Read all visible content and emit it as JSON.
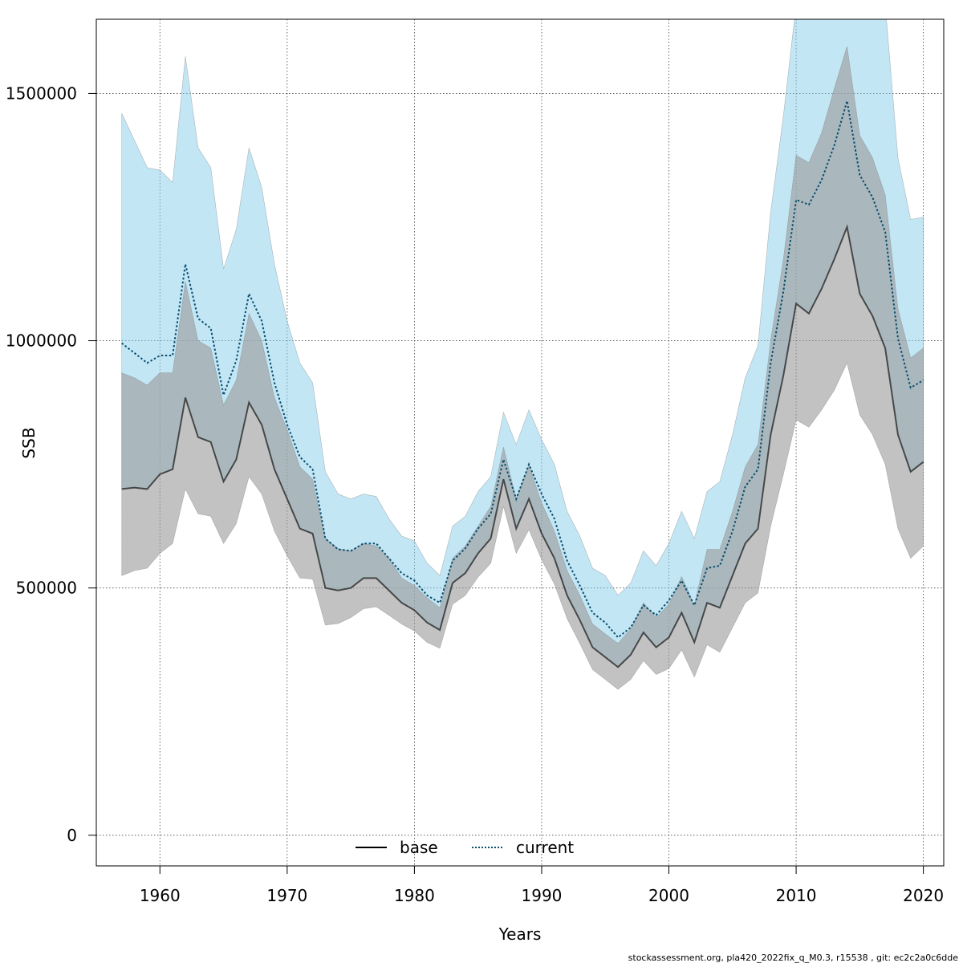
{
  "chart_data": {
    "type": "line",
    "xlabel": "Years",
    "ylabel": "SSB",
    "xlim": [
      1955,
      2021.6
    ],
    "ylim": [
      -62000,
      1650000
    ],
    "x_ticks": [
      1960,
      1970,
      1980,
      1990,
      2000,
      2010,
      2020
    ],
    "y_ticks": [
      0,
      500000,
      1000000,
      1500000
    ],
    "x_tick_labels": [
      "1960",
      "1970",
      "1980",
      "1990",
      "2000",
      "2010",
      "2020"
    ],
    "y_tick_labels": [
      "0",
      "500000",
      "1000000",
      "1500000"
    ],
    "grid": true,
    "legend_position": "bottom-center",
    "years": [
      1957,
      1958,
      1959,
      1960,
      1961,
      1962,
      1963,
      1964,
      1965,
      1966,
      1967,
      1968,
      1969,
      1970,
      1971,
      1972,
      1973,
      1974,
      1975,
      1976,
      1977,
      1978,
      1979,
      1980,
      1981,
      1982,
      1983,
      1984,
      1985,
      1986,
      1987,
      1988,
      1989,
      1990,
      1991,
      1992,
      1993,
      1994,
      1995,
      1996,
      1997,
      1998,
      1999,
      2000,
      2001,
      2002,
      2003,
      2004,
      2005,
      2006,
      2007,
      2008,
      2009,
      2010,
      2011,
      2012,
      2013,
      2014,
      2015,
      2016,
      2017,
      2018,
      2019,
      2020
    ],
    "series": [
      {
        "name": "base",
        "color": "#000000",
        "band_color": "#999999",
        "values": [
          700000,
          703000,
          700000,
          730000,
          740000,
          885000,
          805000,
          795000,
          715000,
          760000,
          875000,
          830000,
          740000,
          680000,
          620000,
          610000,
          500000,
          495000,
          500000,
          520000,
          520000,
          495000,
          470000,
          455000,
          430000,
          415000,
          510000,
          530000,
          570000,
          600000,
          720000,
          620000,
          680000,
          610000,
          560000,
          485000,
          435000,
          380000,
          360000,
          340000,
          365000,
          410000,
          380000,
          400000,
          450000,
          390000,
          470000,
          460000,
          525000,
          590000,
          620000,
          810000,
          930000,
          1075000,
          1055000,
          1105000,
          1165000,
          1230000,
          1095000,
          1050000,
          985000,
          810000,
          735000,
          755000
        ],
        "lower": [
          525000,
          535000,
          540000,
          570000,
          590000,
          700000,
          650000,
          645000,
          590000,
          630000,
          725000,
          690000,
          615000,
          565000,
          520000,
          518000,
          425000,
          428000,
          440000,
          458000,
          462000,
          445000,
          427000,
          413000,
          390000,
          378000,
          467000,
          485000,
          522000,
          550000,
          665000,
          570000,
          618000,
          557000,
          508000,
          438000,
          388000,
          335000,
          315000,
          295000,
          315000,
          353000,
          325000,
          337000,
          375000,
          320000,
          385000,
          370000,
          420000,
          470000,
          490000,
          625000,
          730000,
          840000,
          825000,
          860000,
          900000,
          955000,
          850000,
          810000,
          750000,
          620000,
          560000,
          585000
        ],
        "upper": [
          935000,
          925000,
          910000,
          935000,
          935000,
          1120000,
          1000000,
          985000,
          870000,
          920000,
          1055000,
          1000000,
          885000,
          820000,
          745000,
          720000,
          600000,
          580000,
          575000,
          590000,
          585000,
          560000,
          520000,
          505000,
          480000,
          460000,
          560000,
          585000,
          625000,
          665000,
          785000,
          680000,
          748000,
          672000,
          615000,
          535000,
          485000,
          427000,
          407000,
          388000,
          417000,
          470000,
          440000,
          467000,
          523000,
          465000,
          578000,
          578000,
          655000,
          745000,
          790000,
          1000000,
          1165000,
          1375000,
          1360000,
          1420000,
          1510000,
          1595000,
          1415000,
          1370000,
          1295000,
          1065000,
          965000,
          985000
        ]
      },
      {
        "name": "current",
        "color": "#0a4f6e",
        "band_color": "#87CEEB",
        "values": [
          995000,
          975000,
          955000,
          970000,
          970000,
          1155000,
          1045000,
          1025000,
          890000,
          960000,
          1095000,
          1040000,
          915000,
          830000,
          765000,
          740000,
          600000,
          578000,
          575000,
          590000,
          590000,
          560000,
          530000,
          515000,
          485000,
          470000,
          555000,
          580000,
          620000,
          650000,
          760000,
          680000,
          750000,
          690000,
          640000,
          555000,
          505000,
          450000,
          430000,
          400000,
          420000,
          465000,
          445000,
          475000,
          515000,
          465000,
          540000,
          545000,
          615000,
          705000,
          740000,
          955000,
          1100000,
          1285000,
          1275000,
          1325000,
          1395000,
          1485000,
          1335000,
          1290000,
          1220000,
          1005000,
          905000,
          920000
        ],
        "lower": [
          700000,
          703000,
          700000,
          730000,
          740000,
          885000,
          805000,
          795000,
          715000,
          760000,
          875000,
          830000,
          740000,
          680000,
          620000,
          610000,
          500000,
          495000,
          500000,
          520000,
          520000,
          495000,
          470000,
          455000,
          430000,
          415000,
          510000,
          530000,
          570000,
          600000,
          720000,
          620000,
          680000,
          610000,
          560000,
          485000,
          435000,
          380000,
          360000,
          340000,
          365000,
          410000,
          380000,
          400000,
          450000,
          390000,
          470000,
          460000,
          525000,
          590000,
          620000,
          810000,
          930000,
          1075000,
          1055000,
          1105000,
          1165000,
          1230000,
          1095000,
          1050000,
          985000,
          810000,
          735000,
          755000
        ],
        "upper": [
          1460000,
          1405000,
          1350000,
          1345000,
          1320000,
          1575000,
          1390000,
          1350000,
          1145000,
          1225000,
          1390000,
          1310000,
          1155000,
          1040000,
          955000,
          915000,
          735000,
          690000,
          680000,
          690000,
          685000,
          640000,
          605000,
          595000,
          550000,
          525000,
          625000,
          645000,
          695000,
          725000,
          855000,
          790000,
          860000,
          800000,
          750000,
          655000,
          605000,
          540000,
          525000,
          485000,
          510000,
          575000,
          545000,
          590000,
          655000,
          600000,
          695000,
          715000,
          810000,
          925000,
          990000,
          1260000,
          1455000,
          1680000,
          1680000,
          1680000,
          1680000,
          1680000,
          1680000,
          1680000,
          1680000,
          1370000,
          1245000,
          1250000
        ]
      }
    ]
  },
  "legend": [
    {
      "label": "base",
      "color": "#000000",
      "style": "solid"
    },
    {
      "label": "current",
      "color": "#0a4f6e",
      "style": "dotted"
    }
  ],
  "footer": "stockassessment.org, pla420_2022fix_q_M0.3, r15538 , git: ec2c2a0c6dde"
}
